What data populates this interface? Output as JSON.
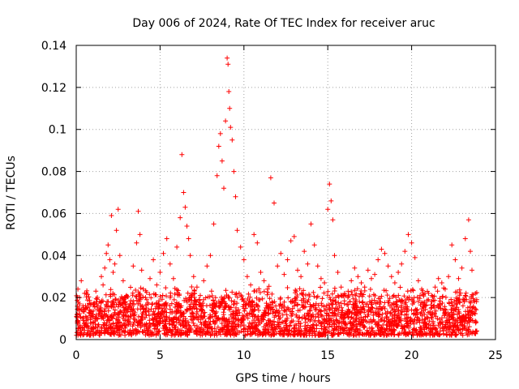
{
  "chart_data": {
    "type": "scatter",
    "title": "Day 006 of 2024, Rate Of TEC Index for receiver aruc",
    "xlabel": "GPS time / hours",
    "ylabel": "ROTI / TECUs",
    "xlim": [
      0,
      25
    ],
    "ylim": [
      0,
      0.14
    ],
    "xticks": [
      0,
      5,
      10,
      15,
      20,
      25
    ],
    "yticks": [
      0,
      0.02,
      0.04,
      0.06,
      0.08,
      0.1,
      0.12,
      0.14
    ],
    "xtick_labels": [
      "0",
      "5",
      "10",
      "15",
      "20",
      "25"
    ],
    "ytick_labels": [
      "0",
      "0.02",
      "0.04",
      "0.06",
      "0.08",
      "0.1",
      "0.12",
      "0.14"
    ],
    "grid": true,
    "marker": "+",
    "color": "#ff0000",
    "series": [
      {
        "name": "ROTI",
        "x": [
          0.05,
          0.1,
          0.2,
          0.3,
          0.4,
          0.5,
          0.6,
          0.8,
          1.0,
          1.2,
          1.4,
          1.5,
          1.6,
          1.7,
          1.8,
          1.9,
          2.0,
          2.1,
          2.2,
          2.3,
          2.4,
          2.5,
          2.6,
          2.8,
          3.0,
          3.2,
          3.4,
          3.6,
          3.7,
          3.8,
          3.9,
          4.0,
          4.2,
          4.4,
          4.6,
          4.8,
          5.0,
          5.2,
          5.4,
          5.6,
          5.8,
          6.0,
          6.2,
          6.3,
          6.4,
          6.5,
          6.6,
          6.7,
          6.8,
          7.0,
          7.2,
          7.4,
          7.6,
          7.8,
          8.0,
          8.2,
          8.4,
          8.5,
          8.6,
          8.7,
          8.8,
          8.9,
          9.0,
          9.05,
          9.1,
          9.15,
          9.2,
          9.3,
          9.4,
          9.5,
          9.6,
          9.8,
          10.0,
          10.2,
          10.4,
          10.6,
          10.8,
          11.0,
          11.2,
          11.4,
          11.6,
          11.8,
          12.0,
          12.2,
          12.4,
          12.6,
          12.8,
          13.0,
          13.2,
          13.4,
          13.6,
          13.8,
          14.0,
          14.2,
          14.4,
          14.6,
          14.8,
          15.0,
          15.1,
          15.2,
          15.3,
          15.4,
          15.6,
          15.8,
          16.0,
          16.2,
          16.4,
          16.6,
          16.8,
          17.0,
          17.2,
          17.4,
          17.6,
          17.8,
          18.0,
          18.2,
          18.4,
          18.6,
          18.8,
          19.0,
          19.2,
          19.4,
          19.6,
          19.8,
          20.0,
          20.2,
          20.4,
          20.6,
          20.8,
          21.0,
          21.2,
          21.4,
          21.6,
          21.8,
          22.0,
          22.2,
          22.4,
          22.6,
          22.8,
          23.0,
          23.2,
          23.4,
          23.5,
          23.6,
          23.8
        ],
        "y": [
          0.012,
          0.024,
          0.02,
          0.028,
          0.016,
          0.022,
          0.009,
          0.014,
          0.011,
          0.018,
          0.015,
          0.03,
          0.026,
          0.034,
          0.041,
          0.045,
          0.038,
          0.059,
          0.032,
          0.036,
          0.052,
          0.062,
          0.04,
          0.028,
          0.021,
          0.017,
          0.035,
          0.046,
          0.061,
          0.05,
          0.033,
          0.024,
          0.019,
          0.029,
          0.038,
          0.026,
          0.032,
          0.041,
          0.048,
          0.036,
          0.029,
          0.044,
          0.058,
          0.088,
          0.07,
          0.063,
          0.054,
          0.048,
          0.04,
          0.03,
          0.025,
          0.021,
          0.028,
          0.035,
          0.04,
          0.055,
          0.078,
          0.092,
          0.098,
          0.085,
          0.072,
          0.104,
          0.134,
          0.131,
          0.118,
          0.11,
          0.101,
          0.095,
          0.08,
          0.068,
          0.052,
          0.044,
          0.038,
          0.03,
          0.026,
          0.05,
          0.046,
          0.032,
          0.028,
          0.024,
          0.077,
          0.065,
          0.035,
          0.041,
          0.031,
          0.038,
          0.047,
          0.049,
          0.033,
          0.03,
          0.042,
          0.036,
          0.055,
          0.045,
          0.035,
          0.029,
          0.027,
          0.062,
          0.074,
          0.066,
          0.057,
          0.04,
          0.032,
          0.025,
          0.022,
          0.02,
          0.028,
          0.034,
          0.03,
          0.027,
          0.025,
          0.033,
          0.029,
          0.031,
          0.038,
          0.043,
          0.041,
          0.035,
          0.03,
          0.027,
          0.032,
          0.036,
          0.042,
          0.05,
          0.046,
          0.039,
          0.028,
          0.024,
          0.022,
          0.019,
          0.021,
          0.025,
          0.029,
          0.027,
          0.024,
          0.03,
          0.045,
          0.038,
          0.029,
          0.034,
          0.048,
          0.057,
          0.042,
          0.033,
          0.022
        ]
      }
    ],
    "noise_band": {
      "ymin": 0.002,
      "ymax": 0.026,
      "points_per_hour": 110
    }
  }
}
